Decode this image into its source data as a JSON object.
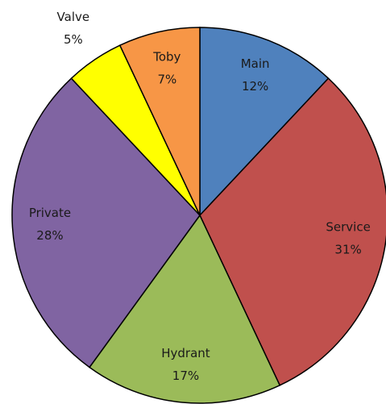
{
  "chart_data": {
    "type": "pie",
    "categories": [
      "Main",
      "Service",
      "Hydrant",
      "Private",
      "Valve",
      "Toby"
    ],
    "values": [
      12,
      31,
      17,
      28,
      5,
      7
    ],
    "value_labels": [
      "12%",
      "31%",
      "17%",
      "28%",
      "5%",
      "7%"
    ],
    "colors": [
      "#4f81bd",
      "#c0504d",
      "#9bbb59",
      "#8064a2",
      "#ffff00",
      "#f79646"
    ]
  }
}
